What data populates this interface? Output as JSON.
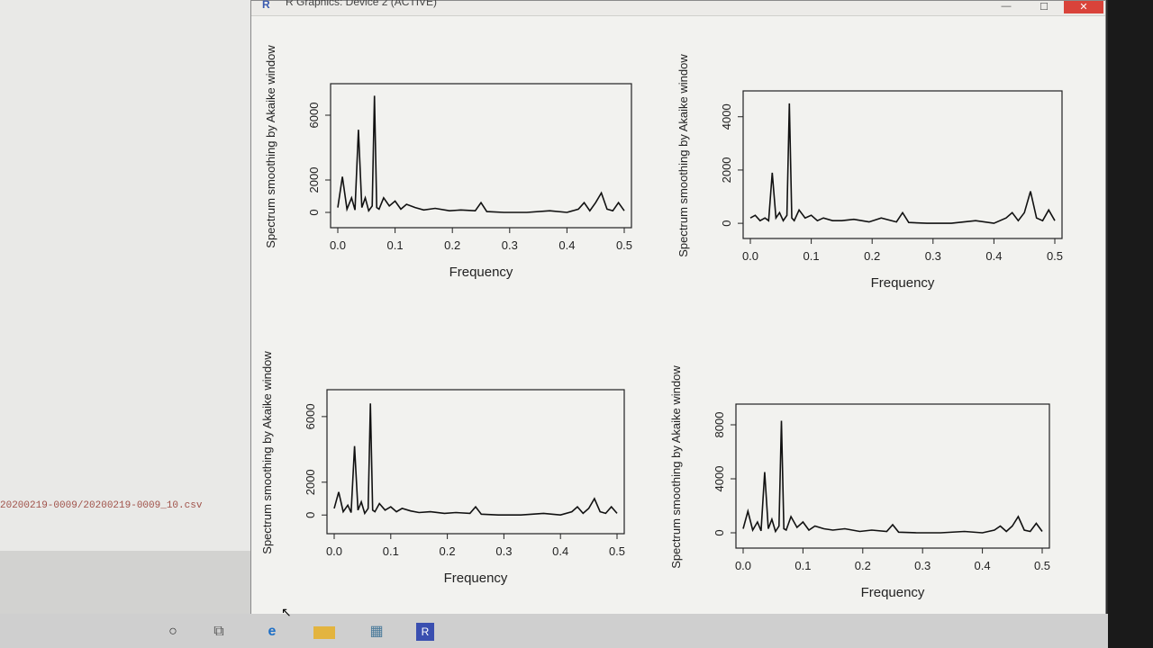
{
  "window": {
    "title": "R Graphics: Device 2 (ACTIVE)",
    "buttons": {
      "minimize": "—",
      "maximize": "☐",
      "close": "✕"
    }
  },
  "console": {
    "text": "20200219-0009/20200219-0009_10.csv"
  },
  "taskbar": {
    "cortana": "○",
    "taskview": "⧉",
    "edge": "e",
    "app1": "▦",
    "app2": "R"
  },
  "chart_data": [
    {
      "type": "line",
      "xlabel": "Frequency",
      "ylabel": "Spectrum smoothing by  Akaike  window",
      "xlim": [
        0,
        0.5
      ],
      "ylim": [
        -500,
        7500
      ],
      "xticks": [
        "0.0",
        "0.1",
        "0.2",
        "0.3",
        "0.4",
        "0.5"
      ],
      "yticks": [
        "0",
        "2000",
        "6000"
      ],
      "x": [
        0.0,
        0.008,
        0.016,
        0.024,
        0.03,
        0.036,
        0.042,
        0.048,
        0.054,
        0.06,
        0.064,
        0.068,
        0.072,
        0.08,
        0.09,
        0.1,
        0.11,
        0.12,
        0.135,
        0.15,
        0.17,
        0.195,
        0.215,
        0.24,
        0.25,
        0.26,
        0.29,
        0.33,
        0.37,
        0.4,
        0.42,
        0.43,
        0.44,
        0.45,
        0.46,
        0.47,
        0.48,
        0.49,
        0.5
      ],
      "y": [
        300,
        2200,
        200,
        900,
        150,
        5100,
        300,
        900,
        100,
        400,
        7200,
        300,
        200,
        900,
        400,
        700,
        200,
        500,
        300,
        150,
        250,
        100,
        150,
        100,
        600,
        50,
        0,
        0,
        100,
        0,
        200,
        600,
        100,
        600,
        1200,
        200,
        100,
        600,
        100
      ]
    },
    {
      "type": "line",
      "xlabel": "Frequency",
      "ylabel": "Spectrum smoothing by  Akaike  window",
      "xlim": [
        0,
        0.5
      ],
      "ylim": [
        -300,
        4700
      ],
      "xticks": [
        "0.0",
        "0.1",
        "0.2",
        "0.3",
        "0.4",
        "0.5"
      ],
      "yticks": [
        "0",
        "2000",
        "4000"
      ],
      "x": [
        0.0,
        0.008,
        0.016,
        0.024,
        0.03,
        0.036,
        0.042,
        0.048,
        0.054,
        0.06,
        0.064,
        0.068,
        0.072,
        0.08,
        0.09,
        0.1,
        0.11,
        0.12,
        0.135,
        0.15,
        0.17,
        0.195,
        0.215,
        0.24,
        0.25,
        0.26,
        0.29,
        0.33,
        0.37,
        0.4,
        0.42,
        0.43,
        0.44,
        0.45,
        0.46,
        0.47,
        0.48,
        0.49,
        0.5
      ],
      "y": [
        200,
        300,
        100,
        200,
        100,
        1900,
        200,
        400,
        100,
        300,
        4500,
        200,
        100,
        500,
        200,
        300,
        100,
        200,
        100,
        100,
        150,
        50,
        200,
        50,
        400,
        30,
        0,
        0,
        100,
        0,
        200,
        400,
        100,
        400,
        1200,
        200,
        100,
        500,
        100
      ]
    },
    {
      "type": "line",
      "xlabel": "Frequency",
      "ylabel": "Spectrum smoothing by  Akaike  window",
      "xlim": [
        0,
        0.5
      ],
      "ylim": [
        -700,
        7200
      ],
      "xticks": [
        "0.0",
        "0.1",
        "0.2",
        "0.3",
        "0.4",
        "0.5"
      ],
      "yticks": [
        "0",
        "2000",
        "6000"
      ],
      "x": [
        0.0,
        0.008,
        0.016,
        0.024,
        0.03,
        0.036,
        0.042,
        0.048,
        0.054,
        0.06,
        0.064,
        0.068,
        0.072,
        0.08,
        0.09,
        0.1,
        0.11,
        0.12,
        0.135,
        0.15,
        0.17,
        0.195,
        0.215,
        0.24,
        0.25,
        0.26,
        0.29,
        0.33,
        0.37,
        0.4,
        0.42,
        0.43,
        0.44,
        0.45,
        0.46,
        0.47,
        0.48,
        0.49,
        0.5
      ],
      "y": [
        400,
        1400,
        200,
        600,
        150,
        4200,
        300,
        800,
        100,
        400,
        6800,
        300,
        200,
        700,
        300,
        500,
        200,
        400,
        250,
        150,
        200,
        100,
        150,
        100,
        500,
        50,
        0,
        0,
        100,
        0,
        200,
        500,
        100,
        400,
        1000,
        200,
        100,
        500,
        100
      ]
    },
    {
      "type": "line",
      "xlabel": "Frequency",
      "ylabel": "Spectrum smoothing by  Akaike  window",
      "xlim": [
        0,
        0.5
      ],
      "ylim": [
        -600,
        9000
      ],
      "xticks": [
        "0.0",
        "0.1",
        "0.2",
        "0.3",
        "0.4",
        "0.5"
      ],
      "yticks": [
        "0",
        "4000",
        "8000"
      ],
      "x": [
        0.0,
        0.008,
        0.016,
        0.024,
        0.03,
        0.036,
        0.042,
        0.048,
        0.054,
        0.06,
        0.064,
        0.068,
        0.072,
        0.08,
        0.09,
        0.1,
        0.11,
        0.12,
        0.135,
        0.15,
        0.17,
        0.195,
        0.215,
        0.24,
        0.25,
        0.26,
        0.29,
        0.33,
        0.37,
        0.4,
        0.42,
        0.43,
        0.44,
        0.45,
        0.46,
        0.47,
        0.48,
        0.49,
        0.5
      ],
      "y": [
        300,
        1600,
        200,
        800,
        150,
        4500,
        300,
        1000,
        100,
        500,
        8300,
        300,
        200,
        1200,
        400,
        800,
        200,
        500,
        300,
        200,
        300,
        100,
        200,
        100,
        600,
        50,
        0,
        0,
        100,
        0,
        200,
        500,
        100,
        500,
        1200,
        200,
        100,
        700,
        100
      ]
    }
  ]
}
